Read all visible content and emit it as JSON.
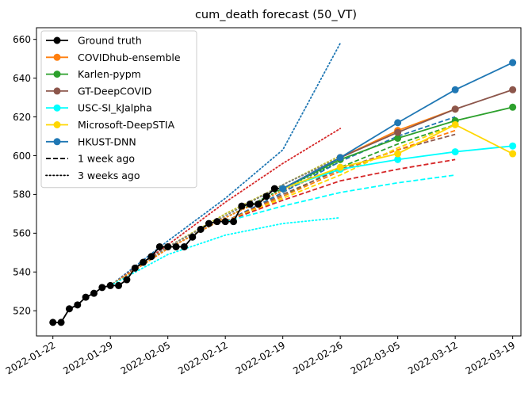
{
  "chart_data": {
    "type": "line",
    "title": "cum_death forecast (50_VT)",
    "xlabel": "",
    "ylabel": "",
    "x_axis": "date",
    "xlim": [
      "2022-01-20",
      "2022-03-20"
    ],
    "ylim": [
      507,
      666
    ],
    "grid": false,
    "legend_position": "top-left",
    "x_ticks": [
      "2022-01-22",
      "2022-01-29",
      "2022-02-05",
      "2022-02-12",
      "2022-02-19",
      "2022-02-26",
      "2022-03-05",
      "2022-03-12",
      "2022-03-19"
    ],
    "y_ticks": [
      520,
      540,
      560,
      580,
      600,
      620,
      640,
      660
    ],
    "ground_truth": {
      "name": "Ground truth",
      "color": "#000000",
      "x": [
        "2022-01-22",
        "2022-01-23",
        "2022-01-24",
        "2022-01-25",
        "2022-01-26",
        "2022-01-27",
        "2022-01-28",
        "2022-01-29",
        "2022-01-30",
        "2022-01-31",
        "2022-02-01",
        "2022-02-02",
        "2022-02-03",
        "2022-02-04",
        "2022-02-05",
        "2022-02-06",
        "2022-02-07",
        "2022-02-08",
        "2022-02-09",
        "2022-02-10",
        "2022-02-11",
        "2022-02-12",
        "2022-02-13",
        "2022-02-14",
        "2022-02-15",
        "2022-02-16",
        "2022-02-17",
        "2022-02-18",
        "2022-02-19"
      ],
      "y": [
        514,
        514,
        521,
        523,
        527,
        529,
        532,
        533,
        533,
        536,
        542,
        545,
        548,
        553,
        553,
        553,
        553,
        558,
        562,
        565,
        566,
        566,
        566,
        574,
        575,
        575,
        579,
        583,
        583
      ]
    },
    "series": [
      {
        "name": "COVIDhub-ensemble",
        "color": "#ff7f0e",
        "x": [
          "2022-02-19",
          "2022-02-26",
          "2022-03-05",
          "2022-03-12"
        ],
        "y": [
          583,
          599,
          613,
          624
        ]
      },
      {
        "name": "Karlen-pypm",
        "color": "#2ca02c",
        "x": [
          "2022-02-19",
          "2022-02-26",
          "2022-03-05",
          "2022-03-12",
          "2022-03-19"
        ],
        "y": [
          583,
          598,
          609,
          618,
          625
        ]
      },
      {
        "name": "GT-DeepCOVID",
        "color": "#8c564b",
        "x": [
          "2022-02-19",
          "2022-02-26",
          "2022-03-05",
          "2022-03-12",
          "2022-03-19"
        ],
        "y": [
          583,
          599,
          612,
          624,
          634
        ]
      },
      {
        "name": "USC-SI_kJalpha",
        "color": "#00ffff",
        "x": [
          "2022-02-19",
          "2022-02-26",
          "2022-03-05",
          "2022-03-12",
          "2022-03-19"
        ],
        "y": [
          583,
          593,
          598,
          602,
          605
        ]
      },
      {
        "name": "Microsoft-DeepSTIA",
        "color": "#ffd700",
        "x": [
          "2022-02-19",
          "2022-02-26",
          "2022-03-05",
          "2022-03-12",
          "2022-03-19"
        ],
        "y": [
          583,
          594,
          601,
          616,
          601
        ]
      },
      {
        "name": "HKUST-DNN",
        "color": "#1f77b4",
        "x": [
          "2022-02-19",
          "2022-02-26",
          "2022-03-05",
          "2022-03-12",
          "2022-03-19"
        ],
        "y": [
          583,
          599,
          617,
          634,
          648
        ]
      }
    ],
    "forecasts_1_week_ago": [
      {
        "color": "#1f77b4",
        "x": [
          "2022-02-12",
          "2022-02-19",
          "2022-02-26",
          "2022-03-05",
          "2022-03-12"
        ],
        "y": [
          566,
          581,
          597,
          610,
          620
        ]
      },
      {
        "color": "#2ca02c",
        "x": [
          "2022-02-12",
          "2022-02-19",
          "2022-02-26",
          "2022-03-05",
          "2022-03-12"
        ],
        "y": [
          566,
          579,
          594,
          606,
          616
        ]
      },
      {
        "color": "#8c564b",
        "x": [
          "2022-02-12",
          "2022-02-19",
          "2022-02-26",
          "2022-03-05",
          "2022-03-12"
        ],
        "y": [
          566,
          580,
          593,
          603,
          611
        ]
      },
      {
        "color": "#ff7f0e",
        "x": [
          "2022-02-12",
          "2022-02-19",
          "2022-02-26",
          "2022-03-05",
          "2022-03-12"
        ],
        "y": [
          566,
          579,
          592,
          603,
          613
        ]
      },
      {
        "color": "#ffd700",
        "x": [
          "2022-02-12",
          "2022-02-19",
          "2022-02-26",
          "2022-03-05",
          "2022-03-12"
        ],
        "y": [
          566,
          578,
          590,
          604,
          616
        ]
      },
      {
        "color": "#d62728",
        "x": [
          "2022-02-12",
          "2022-02-19",
          "2022-02-26",
          "2022-03-05",
          "2022-03-12"
        ],
        "y": [
          566,
          577,
          587,
          593,
          598
        ]
      },
      {
        "color": "#00ffff",
        "x": [
          "2022-02-12",
          "2022-02-19",
          "2022-02-26",
          "2022-03-05",
          "2022-03-12"
        ],
        "y": [
          566,
          574,
          581,
          586,
          590
        ]
      }
    ],
    "forecasts_3_weeks_ago": [
      {
        "color": "#1f77b4",
        "x": [
          "2022-01-29",
          "2022-02-05",
          "2022-02-12",
          "2022-02-19",
          "2022-02-26"
        ],
        "y": [
          533,
          556,
          578,
          603,
          658
        ]
      },
      {
        "color": "#d62728",
        "x": [
          "2022-01-29",
          "2022-02-05",
          "2022-02-12",
          "2022-02-19",
          "2022-02-26"
        ],
        "y": [
          533,
          554,
          576,
          596,
          614
        ]
      },
      {
        "color": "#bcbd22",
        "x": [
          "2022-01-29",
          "2022-02-05",
          "2022-02-12",
          "2022-02-19",
          "2022-02-26"
        ],
        "y": [
          533,
          553,
          570,
          585,
          600
        ]
      },
      {
        "color": "#7f7f7f",
        "x": [
          "2022-01-29",
          "2022-02-05",
          "2022-02-12",
          "2022-02-19",
          "2022-02-26"
        ],
        "y": [
          533,
          553,
          569,
          585,
          599
        ]
      },
      {
        "color": "#2ca02c",
        "x": [
          "2022-01-29",
          "2022-02-05",
          "2022-02-12",
          "2022-02-19",
          "2022-02-26"
        ],
        "y": [
          533,
          552,
          568,
          583,
          597
        ]
      },
      {
        "color": "#ff7f0e",
        "x": [
          "2022-01-29",
          "2022-02-05",
          "2022-02-12",
          "2022-02-19",
          "2022-02-26"
        ],
        "y": [
          533,
          552,
          568,
          582,
          594
        ]
      },
      {
        "color": "#00ffff",
        "x": [
          "2022-01-29",
          "2022-02-05",
          "2022-02-12",
          "2022-02-19",
          "2022-02-26"
        ],
        "y": [
          533,
          549,
          559,
          565,
          568
        ]
      }
    ],
    "legend": [
      {
        "label": "Ground truth",
        "color": "#000000",
        "style": "marker-line"
      },
      {
        "label": "COVIDhub-ensemble",
        "color": "#ff7f0e",
        "style": "line"
      },
      {
        "label": "Karlen-pypm",
        "color": "#2ca02c",
        "style": "marker-line"
      },
      {
        "label": "GT-DeepCOVID",
        "color": "#8c564b",
        "style": "marker-line"
      },
      {
        "label": "USC-SI_kJalpha",
        "color": "#00ffff",
        "style": "marker-line"
      },
      {
        "label": "Microsoft-DeepSTIA",
        "color": "#ffd700",
        "style": "marker-line"
      },
      {
        "label": "HKUST-DNN",
        "color": "#1f77b4",
        "style": "marker-line"
      },
      {
        "label": "1 week ago",
        "color": "#000000",
        "style": "dashed"
      },
      {
        "label": "3 weeks ago",
        "color": "#000000",
        "style": "dotted"
      }
    ]
  }
}
